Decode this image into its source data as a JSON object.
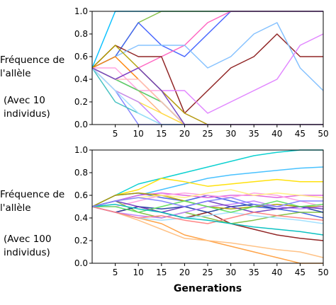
{
  "chart_data": [
    {
      "type": "line",
      "ylabel_line1": "Fréquence de",
      "ylabel_line2": "l'allèle",
      "note_line1": "(Avec 10",
      "note_line2": "individus)",
      "xlabel": "",
      "xlim": [
        0,
        50
      ],
      "ylim": [
        0,
        1
      ],
      "x_ticks": [
        5,
        10,
        15,
        20,
        25,
        30,
        35,
        40,
        45,
        50
      ],
      "y_ticks": [
        "0.0",
        "0.2",
        "0.4",
        "0.6",
        "0.8",
        "1.0"
      ],
      "x": [
        0,
        5,
        10,
        15,
        20,
        25,
        30,
        35,
        40,
        45,
        50
      ],
      "series": [
        {
          "color": "#7f7fff",
          "values": [
            0.5,
            0.3,
            0.0,
            0.0,
            0.0,
            0.0,
            0.0,
            0.0,
            0.0,
            0.0,
            0.0
          ]
        },
        {
          "color": "#00bfff",
          "values": [
            0.5,
            1.0,
            1.0,
            1.0,
            1.0,
            1.0,
            1.0,
            1.0,
            1.0,
            1.0,
            1.0
          ]
        },
        {
          "color": "#7fbf3f",
          "values": [
            0.5,
            0.6,
            0.9,
            1.0,
            1.0,
            1.0,
            1.0,
            1.0,
            1.0,
            1.0,
            1.0
          ]
        },
        {
          "color": "#3f5fff",
          "values": [
            0.5,
            0.6,
            0.9,
            0.7,
            0.6,
            0.8,
            1.0,
            1.0,
            1.0,
            1.0,
            1.0
          ]
        },
        {
          "color": "#ff5fbf",
          "values": [
            0.5,
            0.4,
            0.5,
            0.6,
            0.7,
            0.9,
            1.0,
            1.0,
            1.0,
            1.0,
            1.0
          ]
        },
        {
          "color": "#8b1a1a",
          "values": [
            0.5,
            0.7,
            0.6,
            0.6,
            0.1,
            0.3,
            0.5,
            0.6,
            0.8,
            0.6,
            0.6
          ]
        },
        {
          "color": "#7fbfff",
          "values": [
            0.5,
            0.6,
            0.7,
            0.7,
            0.7,
            0.5,
            0.6,
            0.8,
            0.9,
            0.5,
            0.3
          ]
        },
        {
          "color": "#df7fff",
          "values": [
            0.5,
            0.4,
            0.5,
            0.3,
            0.3,
            0.1,
            0.2,
            0.3,
            0.4,
            0.7,
            0.8
          ]
        },
        {
          "color": "#ffaf7f",
          "values": [
            0.5,
            0.4,
            0.3,
            0.1,
            0.0,
            0.0,
            0.0,
            0.0,
            0.0,
            0.0,
            0.0
          ]
        },
        {
          "color": "#ffdf3f",
          "values": [
            0.5,
            0.3,
            0.2,
            0.1,
            0.0,
            0.0,
            0.0,
            0.0,
            0.0,
            0.0,
            0.0
          ]
        },
        {
          "color": "#3fbfbf",
          "values": [
            0.5,
            0.2,
            0.1,
            0.0,
            0.0,
            0.0,
            0.0,
            0.0,
            0.0,
            0.0,
            0.0
          ]
        },
        {
          "color": "#1f3f9f",
          "values": [
            0.5,
            0.4,
            0.3,
            0.2,
            0.0,
            0.0,
            0.0,
            0.0,
            0.0,
            0.0,
            0.0
          ]
        },
        {
          "color": "#ff7f00",
          "values": [
            0.5,
            0.6,
            0.4,
            0.2,
            0.0,
            0.0,
            0.0,
            0.0,
            0.0,
            0.0,
            0.0
          ]
        },
        {
          "color": "#bf7fff",
          "values": [
            0.5,
            0.3,
            0.2,
            0.0,
            0.0,
            0.0,
            0.0,
            0.0,
            0.0,
            0.0,
            0.0
          ]
        },
        {
          "color": "#ff9fdf",
          "values": [
            0.5,
            0.5,
            0.3,
            0.3,
            0.1,
            0.0,
            0.0,
            0.0,
            0.0,
            0.0,
            0.0
          ]
        },
        {
          "color": "#5fdf5f",
          "values": [
            0.5,
            0.4,
            0.3,
            0.2,
            0.0,
            0.0,
            0.0,
            0.0,
            0.0,
            0.0,
            0.0
          ]
        },
        {
          "color": "#af9f00",
          "values": [
            0.5,
            0.7,
            0.5,
            0.3,
            0.1,
            0.0,
            0.0,
            0.0,
            0.0,
            0.0,
            0.0
          ]
        },
        {
          "color": "#9fdfff",
          "values": [
            0.5,
            0.3,
            0.1,
            0.0,
            0.0,
            0.0,
            0.0,
            0.0,
            0.0,
            0.0,
            0.0
          ]
        },
        {
          "color": "#ffbfbf",
          "values": [
            0.5,
            0.4,
            0.4,
            0.2,
            0.0,
            0.0,
            0.0,
            0.0,
            0.0,
            0.0,
            0.0
          ]
        },
        {
          "color": "#6f3fbf",
          "values": [
            0.5,
            0.4,
            0.5,
            0.3,
            0.0,
            0.0,
            0.0,
            0.0,
            0.0,
            0.0,
            0.0
          ]
        }
      ]
    },
    {
      "type": "line",
      "ylabel_line1": "Fréquence de",
      "ylabel_line2": "l'allèle",
      "note_line1": "(Avec 100",
      "note_line2": "individus)",
      "xlabel": "Generations",
      "xlim": [
        0,
        50
      ],
      "ylim": [
        0,
        1
      ],
      "x_ticks": [
        5,
        10,
        15,
        20,
        25,
        30,
        35,
        40,
        45,
        50
      ],
      "y_ticks": [
        "0.0",
        "0.2",
        "0.4",
        "0.6",
        "0.8",
        "1.0"
      ],
      "x": [
        0,
        5,
        10,
        15,
        20,
        25,
        30,
        35,
        40,
        45,
        50
      ],
      "series": [
        {
          "color": "#00cfcf",
          "values": [
            0.5,
            0.6,
            0.7,
            0.75,
            0.8,
            0.85,
            0.9,
            0.95,
            0.98,
            1.0,
            1.0
          ]
        },
        {
          "color": "#3fbfff",
          "values": [
            0.5,
            0.55,
            0.6,
            0.65,
            0.7,
            0.75,
            0.78,
            0.8,
            0.82,
            0.84,
            0.85
          ]
        },
        {
          "color": "#ffdf00",
          "values": [
            0.5,
            0.6,
            0.65,
            0.75,
            0.72,
            0.68,
            0.7,
            0.72,
            0.74,
            0.72,
            0.72
          ]
        },
        {
          "color": "#ff9f3f",
          "values": [
            0.5,
            0.45,
            0.4,
            0.35,
            0.25,
            0.2,
            0.15,
            0.1,
            0.05,
            0.0,
            0.0
          ]
        },
        {
          "color": "#ffbf7f",
          "values": [
            0.5,
            0.45,
            0.38,
            0.3,
            0.22,
            0.2,
            0.18,
            0.15,
            0.12,
            0.1,
            0.05
          ]
        },
        {
          "color": "#8b1a1a",
          "values": [
            0.5,
            0.45,
            0.5,
            0.45,
            0.4,
            0.45,
            0.35,
            0.3,
            0.25,
            0.22,
            0.2
          ]
        },
        {
          "color": "#3f5fdf",
          "values": [
            0.5,
            0.6,
            0.62,
            0.58,
            0.55,
            0.6,
            0.55,
            0.5,
            0.48,
            0.45,
            0.4
          ]
        },
        {
          "color": "#df5fdf",
          "values": [
            0.5,
            0.55,
            0.6,
            0.62,
            0.6,
            0.58,
            0.6,
            0.6,
            0.58,
            0.6,
            0.6
          ]
        },
        {
          "color": "#ff9fdf",
          "values": [
            0.5,
            0.5,
            0.55,
            0.6,
            0.62,
            0.6,
            0.58,
            0.62,
            0.6,
            0.55,
            0.5
          ]
        },
        {
          "color": "#7fbf3f",
          "values": [
            0.5,
            0.55,
            0.45,
            0.4,
            0.45,
            0.4,
            0.35,
            0.38,
            0.42,
            0.45,
            0.45
          ]
        },
        {
          "color": "#1f3f9f",
          "values": [
            0.5,
            0.45,
            0.5,
            0.48,
            0.5,
            0.45,
            0.5,
            0.52,
            0.48,
            0.5,
            0.45
          ]
        },
        {
          "color": "#af9f00",
          "values": [
            0.5,
            0.6,
            0.62,
            0.6,
            0.55,
            0.5,
            0.48,
            0.5,
            0.52,
            0.5,
            0.5
          ]
        },
        {
          "color": "#ffef7f",
          "values": [
            0.5,
            0.55,
            0.58,
            0.6,
            0.58,
            0.62,
            0.65,
            0.6,
            0.62,
            0.6,
            0.58
          ]
        },
        {
          "color": "#9fdfff",
          "values": [
            0.5,
            0.45,
            0.4,
            0.38,
            0.4,
            0.42,
            0.45,
            0.42,
            0.4,
            0.38,
            0.35
          ]
        },
        {
          "color": "#bf7fff",
          "values": [
            0.5,
            0.45,
            0.42,
            0.4,
            0.45,
            0.5,
            0.52,
            0.55,
            0.5,
            0.48,
            0.5
          ]
        },
        {
          "color": "#6f3fbf",
          "values": [
            0.5,
            0.55,
            0.5,
            0.45,
            0.5,
            0.55,
            0.5,
            0.45,
            0.48,
            0.5,
            0.48
          ]
        },
        {
          "color": "#5fdf5f",
          "values": [
            0.5,
            0.5,
            0.45,
            0.5,
            0.55,
            0.5,
            0.45,
            0.5,
            0.55,
            0.5,
            0.52
          ]
        },
        {
          "color": "#ff7f7f",
          "values": [
            0.5,
            0.45,
            0.4,
            0.42,
            0.38,
            0.35,
            0.4,
            0.45,
            0.42,
            0.4,
            0.38
          ]
        },
        {
          "color": "#00bfbf",
          "values": [
            0.5,
            0.52,
            0.48,
            0.45,
            0.4,
            0.38,
            0.35,
            0.32,
            0.3,
            0.28,
            0.25
          ]
        },
        {
          "color": "#7f7fff",
          "values": [
            0.5,
            0.55,
            0.58,
            0.55,
            0.5,
            0.55,
            0.58,
            0.52,
            0.5,
            0.55,
            0.55
          ]
        }
      ]
    }
  ]
}
